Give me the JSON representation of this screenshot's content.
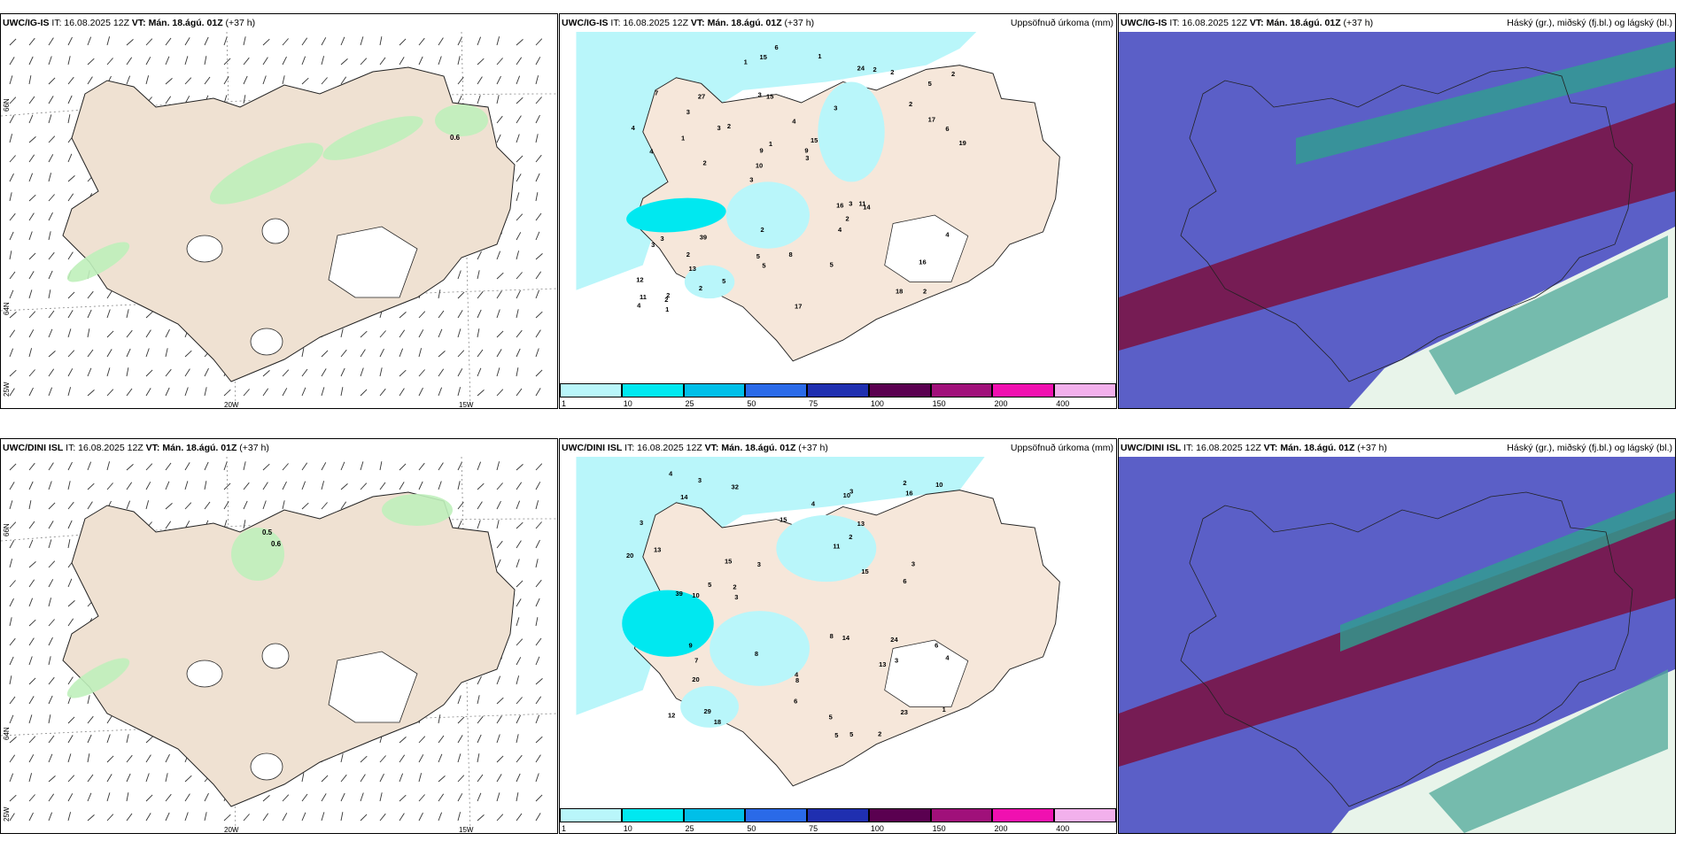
{
  "rows": [
    {
      "model": "UWC/IG-IS",
      "it_label": "IT: 16.08.2025 12Z",
      "vt_label": "VT: Mán. 18.ágú. 01Z",
      "lead": "(+37 h)"
    },
    {
      "model": "UWC/DINI ISL",
      "it_label": "IT: 16.08.2025 12Z",
      "vt_label": "VT: Mán. 18.ágú. 01Z",
      "lead": "(+37 h)"
    }
  ],
  "precip_title": "Uppsöfnuð úrkoma (mm)",
  "cloud_title": "Háský (gr.), miðský (fj.bl.) og lágský (bl.)",
  "colorbar": {
    "ticks": [
      "1",
      "10",
      "25",
      "50",
      "75",
      "100",
      "150",
      "200",
      "400"
    ],
    "colors": [
      "#b9f6fa",
      "#00e8f0",
      "#00bfe8",
      "#2a6ae8",
      "#1f2fb0",
      "#5a0050",
      "#a0107a",
      "#f010b0",
      "#f2b0ec"
    ]
  },
  "axes": {
    "lon_left": "20W",
    "lon_right": "15W",
    "lat_top": "66N",
    "lat_mid": "64N",
    "lat_low": "25W"
  },
  "wind_labels": {
    "top": [
      "0.6"
    ],
    "bottom": [
      "0.5",
      "0.6"
    ]
  },
  "precip_labels_top": [
    "2",
    "4",
    "5",
    "3",
    "3",
    "2",
    "3",
    "4",
    "3",
    "2",
    "12",
    "13",
    "15",
    "15",
    "14",
    "7",
    "15",
    "19",
    "16",
    "17",
    "10",
    "5",
    "9",
    "27",
    "24",
    "39",
    "18",
    "16",
    "11",
    "17",
    "3",
    "1",
    "4",
    "2",
    "6",
    "9",
    "11",
    "5",
    "3",
    "3",
    "2",
    "2",
    "2",
    "5",
    "2",
    "1",
    "4",
    "8",
    "2",
    "6",
    "2",
    "4",
    "3",
    "2",
    "2",
    "1",
    "1",
    "1",
    "4",
    "2",
    "5",
    "3"
  ],
  "precip_labels_bottom": [
    "6",
    "2",
    "8",
    "12",
    "4",
    "15",
    "32",
    "13",
    "5",
    "6",
    "14",
    "16",
    "20",
    "15",
    "18",
    "14",
    "20",
    "29",
    "10",
    "15",
    "13",
    "24",
    "23",
    "39",
    "10",
    "11",
    "13",
    "8",
    "9",
    "5",
    "6",
    "3",
    "1",
    "5",
    "4",
    "10",
    "3",
    "2",
    "3",
    "4",
    "3",
    "2",
    "7",
    "3",
    "4",
    "8",
    "3",
    "2",
    "3",
    "5"
  ]
}
